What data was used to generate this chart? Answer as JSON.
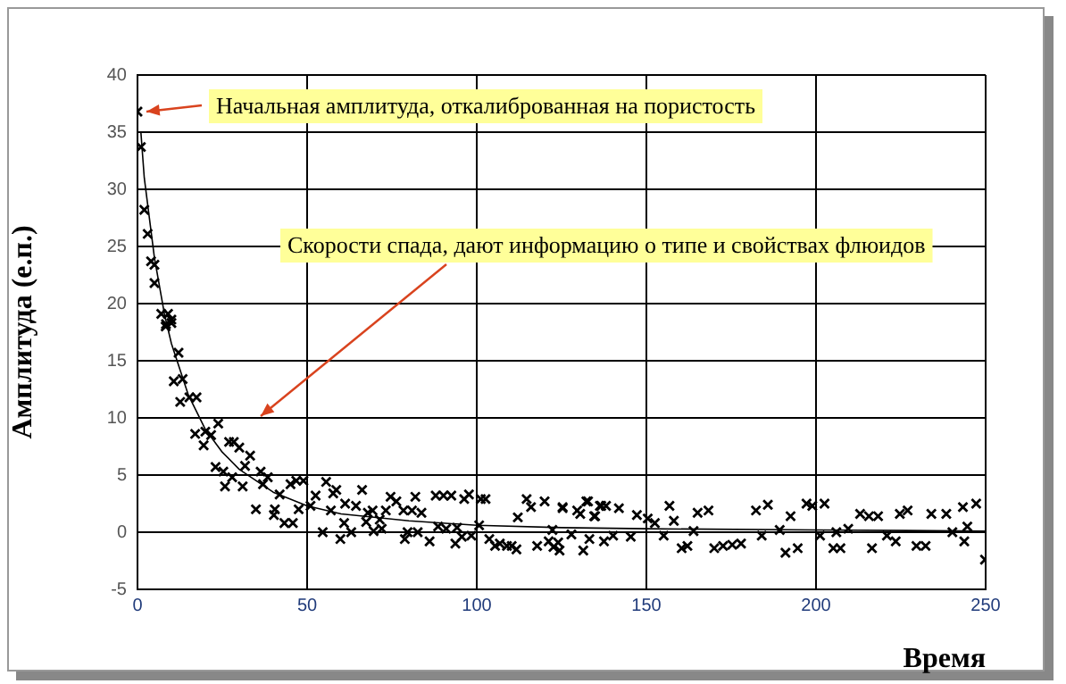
{
  "chart_data": {
    "type": "scatter",
    "xlabel": "Время",
    "ylabel": "Амплитуда (е.п.)",
    "xlim": [
      0,
      250
    ],
    "xticks": [
      0,
      50,
      100,
      150,
      200,
      250
    ],
    "ylim": [
      -5,
      40
    ],
    "yticks": [
      -5,
      0,
      5,
      10,
      15,
      20,
      25,
      30,
      35,
      40
    ],
    "grid": true,
    "legend": false,
    "marker": "cross",
    "annotations": [
      {
        "text": "Начальная амплитуда, откалиброванная на пористость",
        "x": 0,
        "y": 36.8
      },
      "Скорости спада, дают информацию о типе и свойствах флюидов"
    ],
    "series": [
      {
        "color": "#000000",
        "x": [
          0,
          1,
          2,
          3,
          4,
          5,
          5,
          7,
          9,
          8.4,
          10,
          10,
          8.3,
          12.1,
          10.7,
          13.3,
          12.6,
          15.3,
          17.4,
          17,
          20,
          21.7,
          23.8,
          19.5,
          27,
          28.4,
          30,
          33.2,
          31.7,
          23,
          25.3,
          27.9,
          25.8,
          31,
          36.3,
          38.4,
          37,
          34.9,
          40.5,
          40.2,
          41.9,
          43.3,
          45.8,
          45.1,
          46.8,
          48.9,
          47.5,
          52.5,
          51,
          55.6,
          57.7,
          58.6,
          54.6,
          59.8,
          60.9,
          57,
          63,
          61.2,
          66.2,
          64.4,
          67.9,
          69.3,
          67.4,
          71.4,
          69.6,
          72,
          73.2,
          74.6,
          76.3,
          78.4,
          79.6,
          80.9,
          81.9,
          83.7,
          78.8,
          82.6,
          86.1,
          87.9,
          90.2,
          92.5,
          88.6,
          91,
          94.2,
          96.3,
          97.7,
          95.6,
          93.7,
          98.4,
          101.2,
          102.6,
          100.7,
          103.7,
          105.4,
          106.8,
          108.9,
          111.7,
          110.3,
          112.1,
          114.7,
          116,
          117.8,
          120,
          122.3,
          121.2,
          124.4,
          125.3,
          124,
          127.9,
          129.6,
          131.4,
          133.2,
          132.8,
          134.6,
          136.3,
          137.5,
          125.3,
          122.6,
          130.5,
          132.3,
          134.9,
          136.7,
          138.1,
          141.9,
          140.2,
          145.4,
          147.2,
          150.4,
          152.5,
          155.1,
          156.8,
          158.1,
          160.4,
          162.1,
          165.1,
          168.3,
          163.9,
          170,
          172.6,
          175.3,
          177.9,
          182.3,
          185.8,
          184,
          189.3,
          192.5,
          191,
          194.6,
          197.2,
          198.9,
          202.5,
          201.2,
          205.1,
          207.2,
          206,
          209.5,
          213,
          215.6,
          218.3,
          216.5,
          220.9,
          223.5,
          224.7,
          227,
          229.6,
          232.3,
          234,
          238.4,
          240.2,
          243.3,
          247.2,
          244.6,
          243.7,
          249.8
        ],
        "values": [
          36.8,
          33.7,
          28.2,
          26.1,
          23.7,
          23.4,
          21.8,
          19.1,
          19.1,
          18.2,
          18.6,
          18.3,
          18,
          15.7,
          13.2,
          13.4,
          11.4,
          11.8,
          11.8,
          8.6,
          8.8,
          8.5,
          9.5,
          7.6,
          7.9,
          7.9,
          7.4,
          6.7,
          5.8,
          5.7,
          5.3,
          4.8,
          4,
          4,
          5.3,
          4.8,
          4.2,
          2,
          2,
          1.5,
          3.3,
          0.8,
          0.8,
          4.2,
          4.5,
          4.5,
          2,
          3.2,
          2.3,
          4.4,
          3.4,
          3.7,
          0,
          -0.6,
          0.8,
          1.9,
          0,
          2.5,
          3.7,
          2.3,
          1.7,
          1.9,
          0.9,
          1.1,
          0.1,
          0.3,
          1.9,
          3.1,
          2.7,
          1.9,
          0,
          1.9,
          3.1,
          1.7,
          -0.6,
          0,
          -0.8,
          3.2,
          3.2,
          3.2,
          0.5,
          0.3,
          0.4,
          2.9,
          3.3,
          -0.4,
          -1,
          -0.3,
          2.9,
          2.9,
          0.6,
          -0.6,
          -1.2,
          -1,
          -1.2,
          -1.5,
          -1.2,
          1.3,
          2.9,
          2.2,
          -1.2,
          2.7,
          0.2,
          -0.8,
          -1.6,
          2.2,
          -0.9,
          -0.2,
          1.9,
          -1.6,
          -0.6,
          2.7,
          1.4,
          2.3,
          -0.8,
          2.1,
          -1.3,
          1.6,
          2.7,
          1.4,
          2.3,
          2.3,
          2.1,
          -0.3,
          -0.4,
          1.5,
          1.2,
          0.8,
          -0.3,
          2.3,
          1,
          -1.4,
          -1.2,
          1.7,
          1.9,
          0.1,
          -1.4,
          -1.2,
          -1.1,
          -1,
          1.9,
          2.4,
          -0.3,
          0.2,
          1.4,
          -1.8,
          -1.4,
          2.5,
          2.3,
          2.5,
          -0.3,
          -1.4,
          -1.4,
          0,
          0.3,
          1.6,
          1.4,
          1.4,
          -1.4,
          -0.3,
          -0.8,
          1.6,
          1.9,
          -1.2,
          -1.2,
          1.6,
          1.6,
          0,
          2.2,
          2.5,
          0.5,
          -0.8,
          -2.4
        ]
      },
      {
        "type": "line",
        "color": "#000000",
        "marker": "none",
        "x": [
          1,
          2,
          5,
          8,
          10,
          15,
          20,
          25,
          30,
          40,
          50,
          60,
          80,
          100,
          125,
          150,
          200,
          250
        ],
        "values": [
          35,
          31,
          24,
          19,
          16.5,
          12,
          9,
          7,
          5.5,
          3.5,
          2.3,
          1.6,
          1,
          0.6,
          0.4,
          0.3,
          0.2,
          0.1
        ]
      }
    ]
  }
}
